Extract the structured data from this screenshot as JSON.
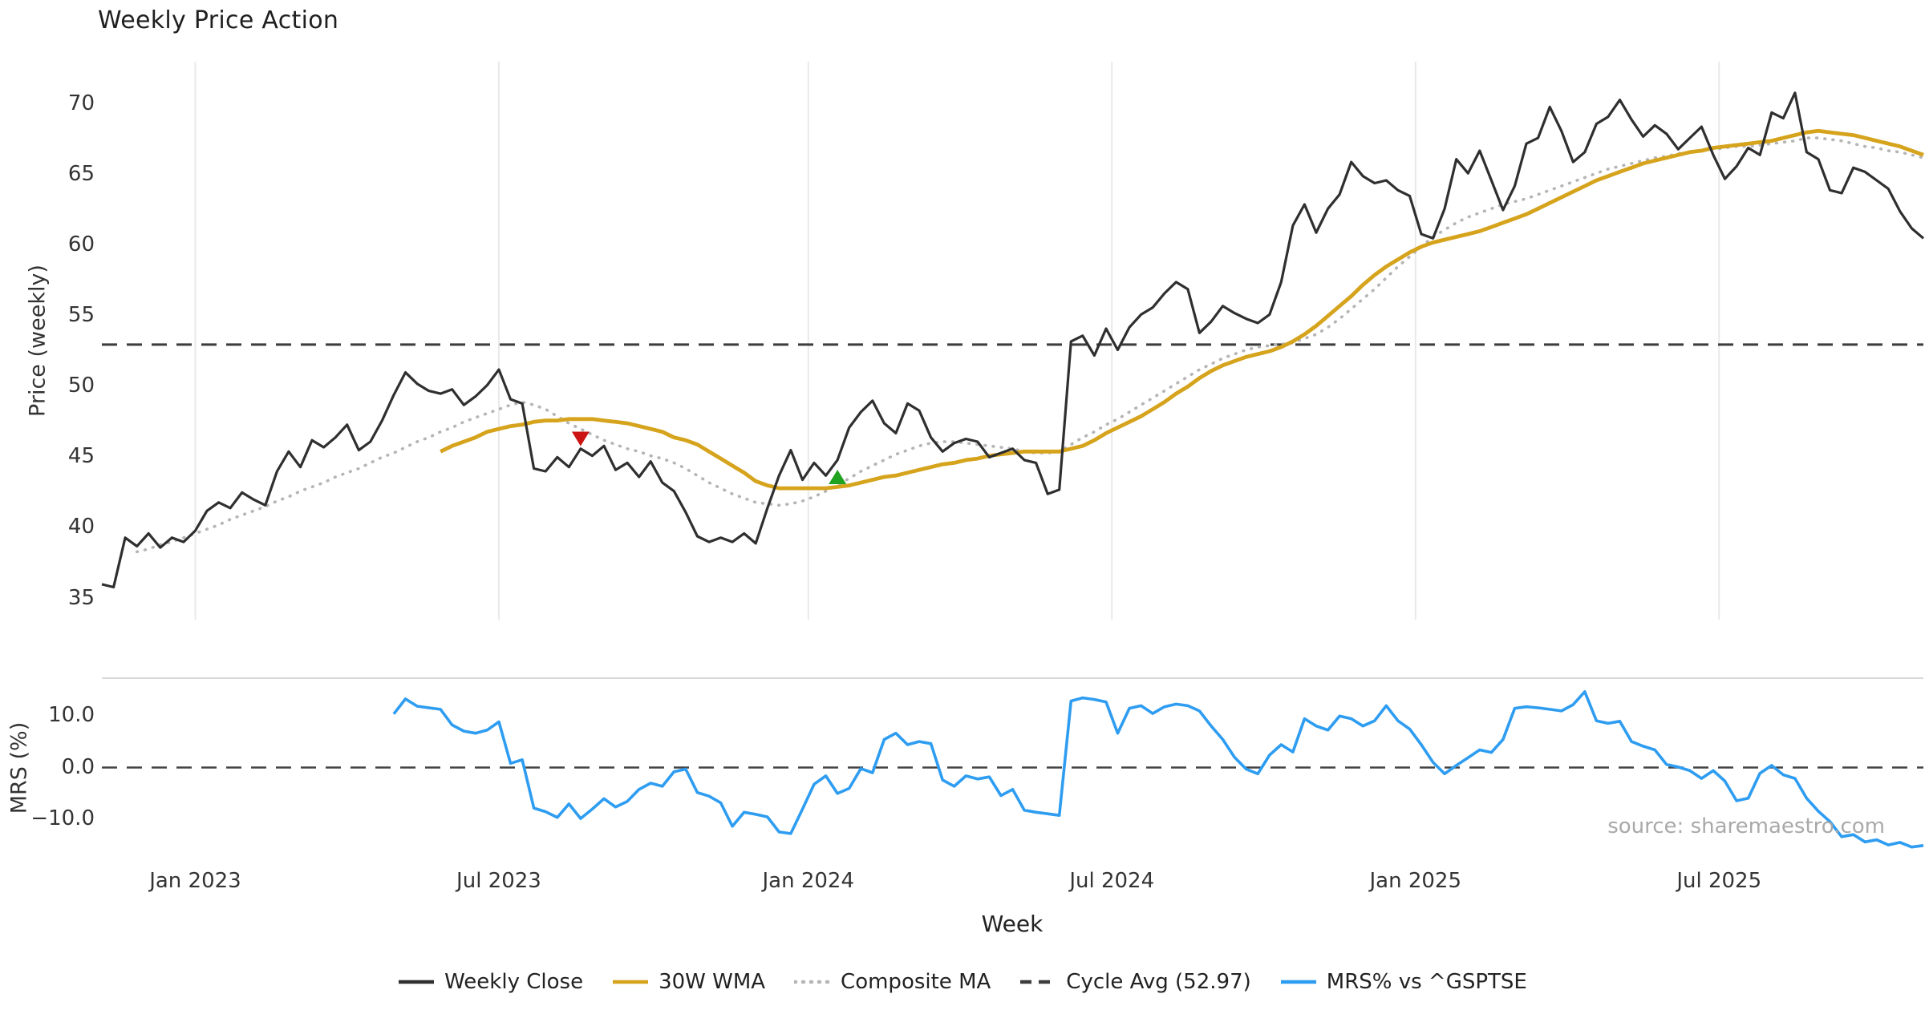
{
  "source": "source: sharemaestro.com",
  "chart_data": {
    "type": "line",
    "title": "Weekly Price Action",
    "xlabel": "Week",
    "x_range": [
      0,
      156
    ],
    "x_ticks": [
      {
        "week": 8,
        "label": "Jan 2023"
      },
      {
        "week": 34,
        "label": "Jul 2023"
      },
      {
        "week": 60.5,
        "label": "Jan 2024"
      },
      {
        "week": 86.5,
        "label": "Jul 2024"
      },
      {
        "week": 112.5,
        "label": "Jan 2025"
      },
      {
        "week": 138.5,
        "label": "Jul 2025"
      }
    ],
    "grid": "vertical-only",
    "legend_position": "bottom-center",
    "legend": [
      {
        "label": "Weekly Close",
        "color": "#2f2f2f",
        "style": "solid"
      },
      {
        "label": "30W WMA",
        "color": "#d6a31c",
        "style": "solid"
      },
      {
        "label": "Composite MA",
        "color": "#b5b5b5",
        "style": "dotted"
      },
      {
        "label": "Cycle Avg (52.97)",
        "color": "#3c3c3c",
        "style": "dashed"
      },
      {
        "label": "MRS% vs ^GSPTSE",
        "color": "#2e9df1",
        "style": "solid"
      }
    ],
    "price_panel": {
      "ylabel": "Price (weekly)",
      "ylim": [
        33.5,
        73.0
      ],
      "yticks": [
        {
          "v": 35,
          "label": "35"
        },
        {
          "v": 40,
          "label": "40"
        },
        {
          "v": 45,
          "label": "45"
        },
        {
          "v": 50,
          "label": "50"
        },
        {
          "v": 55,
          "label": "55"
        },
        {
          "v": 60,
          "label": "60"
        },
        {
          "v": 65,
          "label": "65"
        },
        {
          "v": 70,
          "label": "70"
        }
      ],
      "cycle_avg": 52.97,
      "series": [
        {
          "name": "Weekly Close",
          "color": "#2f2f2f",
          "style": "solid",
          "width": 3.2,
          "x_start": 0,
          "values": [
            36.0,
            35.8,
            39.3,
            38.7,
            39.6,
            38.6,
            39.3,
            39.0,
            39.8,
            41.2,
            41.8,
            41.4,
            42.5,
            42.0,
            41.6,
            44.0,
            45.4,
            44.3,
            46.2,
            45.7,
            46.4,
            47.3,
            45.5,
            46.1,
            47.6,
            49.4,
            51.0,
            50.2,
            49.7,
            49.5,
            49.8,
            48.7,
            49.3,
            50.1,
            51.2,
            49.1,
            48.8,
            44.2,
            44.0,
            45.0,
            44.3,
            45.6,
            45.1,
            45.8,
            44.1,
            44.6,
            43.6,
            44.7,
            43.2,
            42.6,
            41.1,
            39.4,
            39.0,
            39.3,
            39.0,
            39.6,
            38.9,
            41.4,
            43.7,
            45.5,
            43.4,
            44.6,
            43.7,
            44.8,
            47.1,
            48.2,
            49.0,
            47.4,
            46.7,
            48.8,
            48.3,
            46.4,
            45.4,
            46.0,
            46.3,
            46.1,
            45.0,
            45.3,
            45.6,
            44.8,
            44.6,
            42.4,
            42.7,
            53.2,
            53.6,
            52.2,
            54.1,
            52.6,
            54.2,
            55.1,
            55.6,
            56.6,
            57.4,
            56.9,
            53.8,
            54.6,
            55.7,
            55.2,
            54.8,
            54.5,
            55.1,
            57.4,
            61.4,
            62.9,
            60.9,
            62.6,
            63.6,
            65.9,
            64.9,
            64.4,
            64.6,
            63.9,
            63.5,
            60.8,
            60.5,
            62.6,
            66.1,
            65.1,
            66.7,
            64.6,
            62.5,
            64.2,
            67.2,
            67.6,
            69.8,
            68.1,
            65.9,
            66.6,
            68.6,
            69.1,
            70.3,
            68.9,
            67.7,
            68.5,
            67.9,
            66.8,
            67.6,
            68.4,
            66.4,
            64.7,
            65.6,
            66.9,
            66.4,
            69.4,
            69.0,
            70.8,
            66.6,
            66.1,
            63.9,
            63.7,
            65.5,
            65.2,
            64.6,
            64.0,
            62.4,
            61.2,
            60.5
          ]
        },
        {
          "name": "30W WMA",
          "color": "#d6a31c",
          "style": "solid",
          "width": 4.8,
          "x_start": 29,
          "values": [
            45.4,
            45.8,
            46.1,
            46.4,
            46.8,
            47.0,
            47.2,
            47.3,
            47.5,
            47.6,
            47.6,
            47.7,
            47.7,
            47.7,
            47.6,
            47.5,
            47.4,
            47.2,
            47.0,
            46.8,
            46.4,
            46.2,
            45.9,
            45.4,
            44.9,
            44.4,
            43.9,
            43.3,
            43.0,
            42.8,
            42.8,
            42.8,
            42.8,
            42.8,
            42.9,
            43.0,
            43.2,
            43.4,
            43.6,
            43.7,
            43.9,
            44.1,
            44.3,
            44.5,
            44.6,
            44.8,
            44.9,
            45.1,
            45.2,
            45.3,
            45.4,
            45.4,
            45.4,
            45.4,
            45.6,
            45.8,
            46.2,
            46.7,
            47.1,
            47.5,
            47.9,
            48.4,
            48.9,
            49.5,
            50.0,
            50.6,
            51.1,
            51.5,
            51.8,
            52.1,
            52.3,
            52.5,
            52.8,
            53.2,
            53.7,
            54.3,
            55.0,
            55.7,
            56.4,
            57.2,
            57.9,
            58.5,
            59.0,
            59.5,
            59.9,
            60.2,
            60.4,
            60.6,
            60.8,
            61.0,
            61.3,
            61.6,
            61.9,
            62.2,
            62.6,
            63.0,
            63.4,
            63.8,
            64.2,
            64.6,
            64.9,
            65.2,
            65.5,
            65.8,
            66.0,
            66.2,
            66.4,
            66.6,
            66.7,
            66.9,
            67.0,
            67.1,
            67.2,
            67.3,
            67.4,
            67.6,
            67.8,
            68.0,
            68.1,
            68.0,
            67.9,
            67.8,
            67.6,
            67.4,
            67.2,
            67.0,
            66.7,
            66.4
          ]
        },
        {
          "name": "Composite MA",
          "color": "#b5b5b5",
          "style": "dotted",
          "width": 3.6,
          "x_start": 3,
          "values": [
            38.3,
            38.5,
            38.8,
            39.0,
            39.3,
            39.6,
            39.9,
            40.2,
            40.6,
            40.9,
            41.2,
            41.5,
            41.9,
            42.2,
            42.6,
            42.9,
            43.2,
            43.6,
            43.9,
            44.2,
            44.6,
            45.0,
            45.3,
            45.7,
            46.1,
            46.4,
            46.8,
            47.1,
            47.5,
            47.8,
            48.1,
            48.4,
            48.7,
            48.9,
            48.7,
            48.4,
            47.9,
            47.4,
            47.0,
            46.6,
            46.2,
            45.9,
            45.6,
            45.4,
            45.1,
            44.9,
            44.6,
            44.2,
            43.7,
            43.2,
            42.8,
            42.4,
            42.1,
            41.8,
            41.7,
            41.6,
            41.7,
            41.9,
            42.2,
            42.6,
            43.0,
            43.5,
            44.0,
            44.4,
            44.8,
            45.2,
            45.5,
            45.8,
            46.0,
            46.1,
            46.1,
            46.0,
            45.9,
            45.8,
            45.7,
            45.6,
            45.4,
            45.3,
            45.3,
            45.4,
            45.9,
            46.4,
            46.8,
            47.3,
            47.7,
            48.2,
            48.7,
            49.2,
            49.7,
            50.2,
            50.7,
            51.2,
            51.6,
            52.0,
            52.3,
            52.6,
            52.8,
            52.9,
            53.0,
            53.1,
            53.4,
            53.7,
            54.2,
            54.8,
            55.5,
            56.2,
            56.9,
            57.7,
            58.5,
            59.2,
            59.9,
            60.6,
            61.1,
            61.6,
            62.0,
            62.3,
            62.6,
            62.9,
            63.1,
            63.3,
            63.6,
            63.9,
            64.2,
            64.5,
            64.8,
            65.1,
            65.4,
            65.6,
            65.8,
            66.0,
            66.2,
            66.3,
            66.5,
            66.6,
            66.7,
            66.8,
            66.9,
            67.0,
            67.0,
            67.1,
            67.2,
            67.3,
            67.4,
            67.6,
            67.6,
            67.5,
            67.4,
            67.2,
            67.0,
            66.9,
            66.7,
            66.6,
            66.4,
            66.2
          ]
        }
      ],
      "markers": [
        {
          "type": "triangle-down",
          "name": "sell-signal",
          "color": "#cc1414",
          "week": 41,
          "price": 46.3
        },
        {
          "type": "triangle-up",
          "name": "buy-signal",
          "color": "#1fa21f",
          "week": 63,
          "price": 43.6
        }
      ]
    },
    "mrs_panel": {
      "ylabel": "MRS (%)",
      "ylim": [
        -17.5,
        17.2
      ],
      "yticks": [
        {
          "v": 10,
          "label": "10.0"
        },
        {
          "v": 0,
          "label": "0.0"
        },
        {
          "v": -10,
          "label": "−10.0"
        }
      ],
      "zero_line": 0,
      "series": [
        {
          "name": "MRS% vs ^GSPTSE",
          "color": "#2e9df1",
          "style": "solid",
          "width": 3.6,
          "x_start": 25,
          "values": [
            10.3,
            13.2,
            11.8,
            11.5,
            11.2,
            8.2,
            7.0,
            6.6,
            7.2,
            8.8,
            0.8,
            1.5,
            -7.8,
            -8.5,
            -9.6,
            -7.0,
            -9.8,
            -8.0,
            -6.0,
            -7.6,
            -6.5,
            -4.2,
            -3.0,
            -3.6,
            -0.8,
            -0.3,
            -4.8,
            -5.5,
            -6.8,
            -11.3,
            -8.6,
            -9.0,
            -9.5,
            -12.4,
            -12.7,
            -8.0,
            -3.2,
            -1.6,
            -5.0,
            -4.0,
            -0.2,
            -1.0,
            5.4,
            6.6,
            4.4,
            5.0,
            4.6,
            -2.4,
            -3.6,
            -1.6,
            -2.2,
            -1.8,
            -5.4,
            -4.2,
            -8.2,
            -8.6,
            -8.9,
            -9.2,
            12.8,
            13.4,
            13.1,
            12.6,
            6.6,
            11.4,
            11.9,
            10.4,
            11.7,
            12.2,
            11.9,
            10.9,
            8.0,
            5.4,
            2.0,
            -0.3,
            -1.2,
            2.4,
            4.4,
            3.0,
            9.4,
            8.0,
            7.2,
            9.9,
            9.4,
            8.0,
            9.0,
            11.9,
            9.0,
            7.4,
            4.4,
            1.0,
            -1.2,
            0.4,
            1.9,
            3.4,
            2.9,
            5.4,
            11.4,
            11.7,
            11.5,
            11.2,
            10.9,
            12.1,
            14.6,
            9.0,
            8.5,
            8.9,
            5.0,
            4.1,
            3.4,
            0.6,
            0.1,
            -0.6,
            -2.1,
            -0.6,
            -2.6,
            -6.4,
            -5.9,
            -1.1,
            0.4,
            -1.4,
            -2.1,
            -5.9,
            -8.4,
            -10.4,
            -13.3,
            -12.9,
            -14.3,
            -13.9,
            -14.9,
            -14.4,
            -15.3,
            -15.0
          ]
        }
      ]
    },
    "colors": {
      "grid": "#e9e9e9",
      "panel_divider": "#d8d8d8",
      "cycle_avg_line": "#3c3c3c",
      "zero_line": "#444444"
    }
  }
}
